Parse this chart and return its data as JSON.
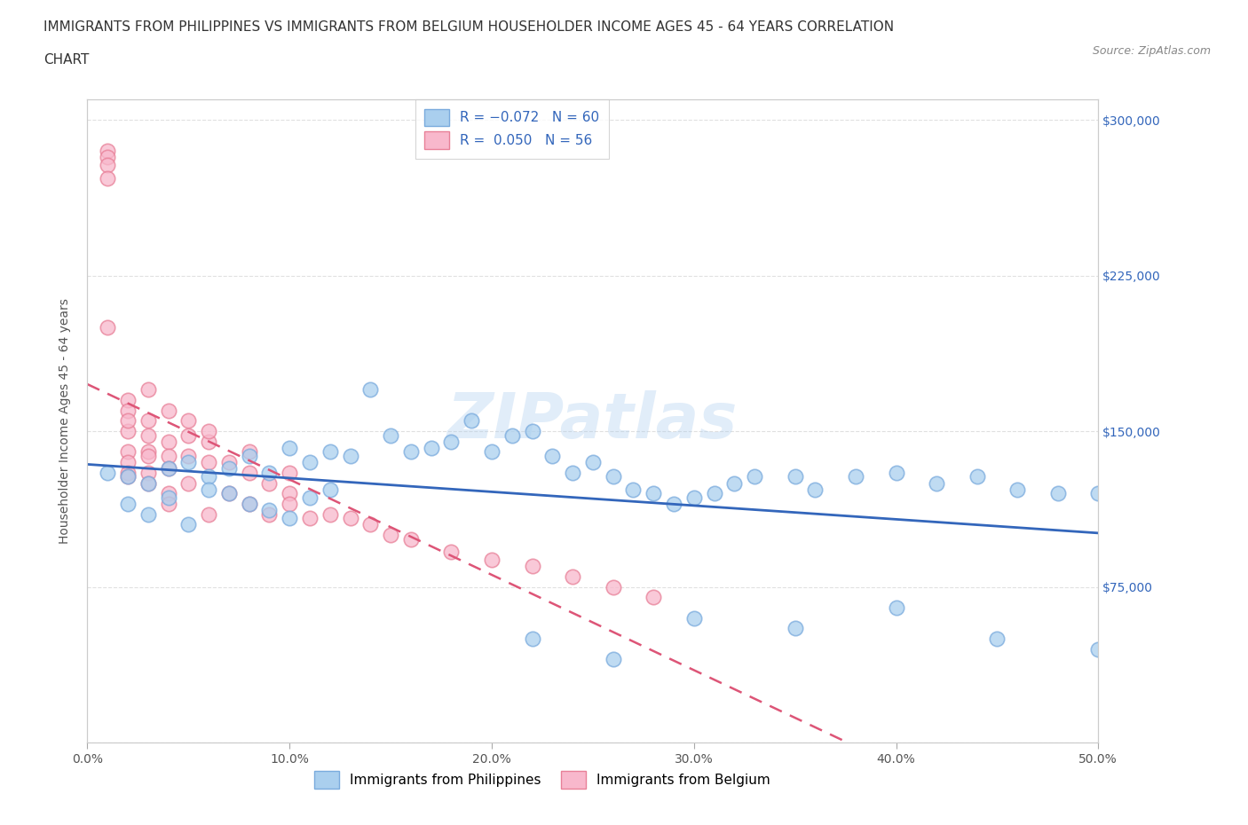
{
  "title_line1": "IMMIGRANTS FROM PHILIPPINES VS IMMIGRANTS FROM BELGIUM HOUSEHOLDER INCOME AGES 45 - 64 YEARS CORRELATION",
  "title_line2": "CHART",
  "source": "Source: ZipAtlas.com",
  "ylabel": "Householder Income Ages 45 - 64 years",
  "xlim": [
    0.0,
    0.5
  ],
  "ylim": [
    0,
    310000
  ],
  "yticks": [
    0,
    75000,
    150000,
    225000,
    300000
  ],
  "ytick_labels": [
    "",
    "$75,000",
    "$150,000",
    "$225,000",
    "$300,000"
  ],
  "xticks": [
    0.0,
    0.1,
    0.2,
    0.3,
    0.4,
    0.5
  ],
  "xtick_labels": [
    "0.0%",
    "10.0%",
    "20.0%",
    "30.0%",
    "40.0%",
    "50.0%"
  ],
  "philippines_color": "#aacfee",
  "philippines_edge": "#7aabdd",
  "belgium_color": "#f8b8cc",
  "belgium_edge": "#e88098",
  "grid_color": "#dddddd",
  "background_color": "#ffffff",
  "phil_line_color": "#3366bb",
  "belg_line_color": "#dd5577",
  "philippines_x": [
    0.01,
    0.02,
    0.02,
    0.03,
    0.03,
    0.04,
    0.04,
    0.05,
    0.05,
    0.06,
    0.06,
    0.07,
    0.07,
    0.08,
    0.08,
    0.09,
    0.09,
    0.1,
    0.1,
    0.11,
    0.11,
    0.12,
    0.12,
    0.13,
    0.14,
    0.15,
    0.16,
    0.17,
    0.18,
    0.19,
    0.2,
    0.21,
    0.22,
    0.23,
    0.24,
    0.25,
    0.26,
    0.27,
    0.28,
    0.29,
    0.3,
    0.31,
    0.32,
    0.33,
    0.35,
    0.36,
    0.38,
    0.4,
    0.42,
    0.44,
    0.46,
    0.48,
    0.5,
    0.22,
    0.26,
    0.3,
    0.35,
    0.4,
    0.45,
    0.5
  ],
  "philippines_y": [
    130000,
    128000,
    115000,
    125000,
    110000,
    132000,
    118000,
    135000,
    105000,
    128000,
    122000,
    132000,
    120000,
    138000,
    115000,
    130000,
    112000,
    142000,
    108000,
    135000,
    118000,
    140000,
    122000,
    138000,
    170000,
    148000,
    140000,
    142000,
    145000,
    155000,
    140000,
    148000,
    150000,
    138000,
    130000,
    135000,
    128000,
    122000,
    120000,
    115000,
    118000,
    120000,
    125000,
    128000,
    128000,
    122000,
    128000,
    130000,
    125000,
    128000,
    122000,
    120000,
    120000,
    50000,
    40000,
    60000,
    55000,
    65000,
    50000,
    45000
  ],
  "belgium_x": [
    0.01,
    0.01,
    0.01,
    0.01,
    0.02,
    0.02,
    0.02,
    0.02,
    0.02,
    0.02,
    0.03,
    0.03,
    0.03,
    0.03,
    0.03,
    0.03,
    0.04,
    0.04,
    0.04,
    0.04,
    0.04,
    0.05,
    0.05,
    0.05,
    0.06,
    0.06,
    0.06,
    0.07,
    0.07,
    0.08,
    0.08,
    0.09,
    0.09,
    0.1,
    0.1,
    0.11,
    0.12,
    0.13,
    0.14,
    0.15,
    0.16,
    0.18,
    0.2,
    0.22,
    0.24,
    0.26,
    0.28,
    0.01,
    0.02,
    0.02,
    0.03,
    0.04,
    0.05,
    0.06,
    0.08,
    0.1
  ],
  "belgium_y": [
    285000,
    282000,
    278000,
    272000,
    165000,
    150000,
    140000,
    135000,
    130000,
    128000,
    155000,
    148000,
    140000,
    138000,
    130000,
    125000,
    145000,
    138000,
    132000,
    120000,
    115000,
    148000,
    138000,
    125000,
    145000,
    135000,
    110000,
    135000,
    120000,
    130000,
    115000,
    125000,
    110000,
    120000,
    115000,
    108000,
    110000,
    108000,
    105000,
    100000,
    98000,
    92000,
    88000,
    85000,
    80000,
    75000,
    70000,
    200000,
    160000,
    155000,
    170000,
    160000,
    155000,
    150000,
    140000,
    130000
  ]
}
